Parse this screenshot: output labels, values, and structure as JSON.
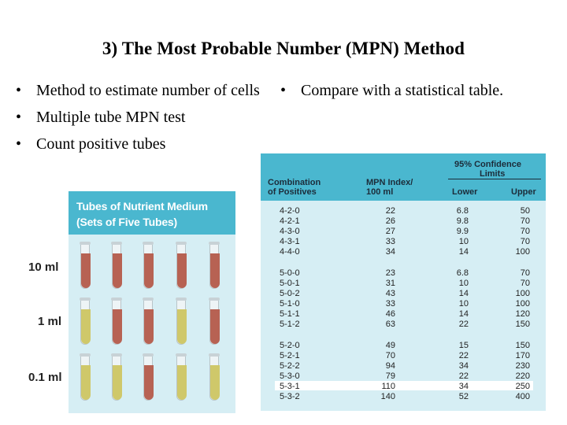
{
  "title": "3) The Most Probable Number (MPN) Method",
  "left_bullets": [
    "Method to estimate number of cells",
    "Multiple tube MPN test",
    "Count positive tubes"
  ],
  "right_bullets": [
    "Compare with a statistical table."
  ],
  "tubes": {
    "header_line1": "Tubes of Nutrient Medium",
    "header_line2": "(Sets of Five Tubes)",
    "rows": [
      {
        "label": "10 ml",
        "tubes": [
          "positive",
          "positive",
          "positive",
          "positive",
          "positive"
        ]
      },
      {
        "label": "1 ml",
        "tubes": [
          "negative",
          "positive",
          "positive",
          "negative",
          "positive"
        ]
      },
      {
        "label": "0.1 ml",
        "tubes": [
          "negative",
          "negative",
          "positive",
          "negative",
          "negative"
        ]
      }
    ],
    "colors": {
      "positive": "#b76253",
      "negative": "#cfc86a"
    }
  },
  "table": {
    "header": {
      "combination_line1": "Combination",
      "combination_line2": "of Positives",
      "mpn_line1": "MPN Index/",
      "mpn_line2": "100 ml",
      "ci_line1": "95% Confidence",
      "ci_line2": "Limits",
      "lower": "Lower",
      "upper": "Upper"
    },
    "groups": [
      [
        {
          "comb": "4-2-0",
          "mpn": "22",
          "lower": "6.8",
          "upper": "50"
        },
        {
          "comb": "4-2-1",
          "mpn": "26",
          "lower": "9.8",
          "upper": "70"
        },
        {
          "comb": "4-3-0",
          "mpn": "27",
          "lower": "9.9",
          "upper": "70"
        },
        {
          "comb": "4-3-1",
          "mpn": "33",
          "lower": "10",
          "upper": "70"
        },
        {
          "comb": "4-4-0",
          "mpn": "34",
          "lower": "14",
          "upper": "100"
        }
      ],
      [
        {
          "comb": "5-0-0",
          "mpn": "23",
          "lower": "6.8",
          "upper": "70"
        },
        {
          "comb": "5-0-1",
          "mpn": "31",
          "lower": "10",
          "upper": "70"
        },
        {
          "comb": "5-0-2",
          "mpn": "43",
          "lower": "14",
          "upper": "100"
        },
        {
          "comb": "5-1-0",
          "mpn": "33",
          "lower": "10",
          "upper": "100"
        },
        {
          "comb": "5-1-1",
          "mpn": "46",
          "lower": "14",
          "upper": "120"
        },
        {
          "comb": "5-1-2",
          "mpn": "63",
          "lower": "22",
          "upper": "150"
        }
      ],
      [
        {
          "comb": "5-2-0",
          "mpn": "49",
          "lower": "15",
          "upper": "150"
        },
        {
          "comb": "5-2-1",
          "mpn": "70",
          "lower": "22",
          "upper": "170"
        },
        {
          "comb": "5-2-2",
          "mpn": "94",
          "lower": "34",
          "upper": "230"
        },
        {
          "comb": "5-3-0",
          "mpn": "79",
          "lower": "22",
          "upper": "220"
        },
        {
          "comb": "5-3-1",
          "mpn": "110",
          "lower": "34",
          "upper": "250",
          "highlighted": true
        },
        {
          "comb": "5-3-2",
          "mpn": "140",
          "lower": "52",
          "upper": "400"
        }
      ]
    ]
  }
}
